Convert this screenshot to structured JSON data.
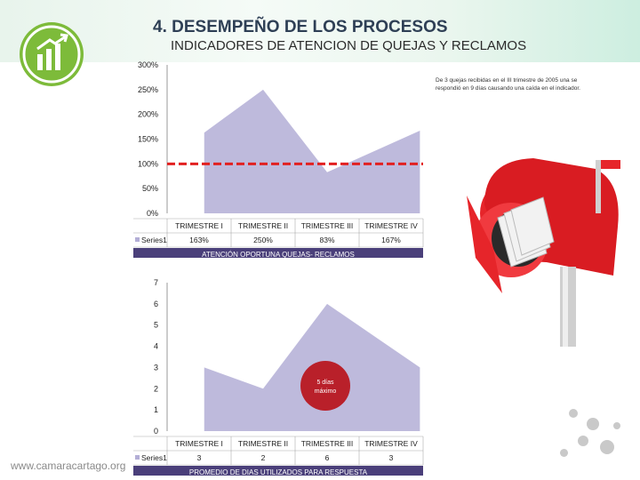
{
  "header": {
    "title": "4. DESEMPEÑO DE LOS PROCESOS",
    "subtitle": "INDICADORES DE ATENCION DE QUEJAS Y RECLAMOS"
  },
  "annotation": {
    "note": "De 3 quejas recibidas en el III trimestre de 2005 una se respondió en 9 días causando una caída en el indicador."
  },
  "footer": {
    "url": "www.camaracartago.org"
  },
  "colors": {
    "area": "#b3aed6",
    "target_line": "#e22020",
    "banner": "#4a3f7a",
    "logo": "#7dbb3a"
  },
  "chart_data": [
    {
      "type": "area",
      "categories": [
        "TRIMESTRE I",
        "TRIMESTRE II",
        "TRIMESTRE III",
        "TRIMESTRE IV"
      ],
      "series": [
        {
          "name": "Series1",
          "values": [
            163,
            250,
            83,
            167
          ],
          "labels": [
            "163%",
            "250%",
            "83%",
            "167%"
          ]
        }
      ],
      "yticks": [
        "0%",
        "50%",
        "100%",
        "150%",
        "200%",
        "250%",
        "300%"
      ],
      "ylim": [
        0,
        300
      ],
      "reference_line": 100,
      "title": "ATENCIÓN OPORTUNA QUEJAS- RECLAMOS"
    },
    {
      "type": "area",
      "categories": [
        "TRIMESTRE I",
        "TRIMESTRE II",
        "TRIMESTRE III",
        "TRIMESTRE IV"
      ],
      "series": [
        {
          "name": "Series1",
          "values": [
            3,
            2,
            6,
            3
          ],
          "labels": [
            "3",
            "2",
            "6",
            "3"
          ]
        }
      ],
      "yticks": [
        "0",
        "1",
        "2",
        "3",
        "4",
        "5",
        "6",
        "7"
      ],
      "ylim": [
        0,
        7
      ],
      "badge": "5 días máximo",
      "title": "PROMEDIO DE DIAS UTILIZADOS PARA RESPUESTA"
    }
  ]
}
